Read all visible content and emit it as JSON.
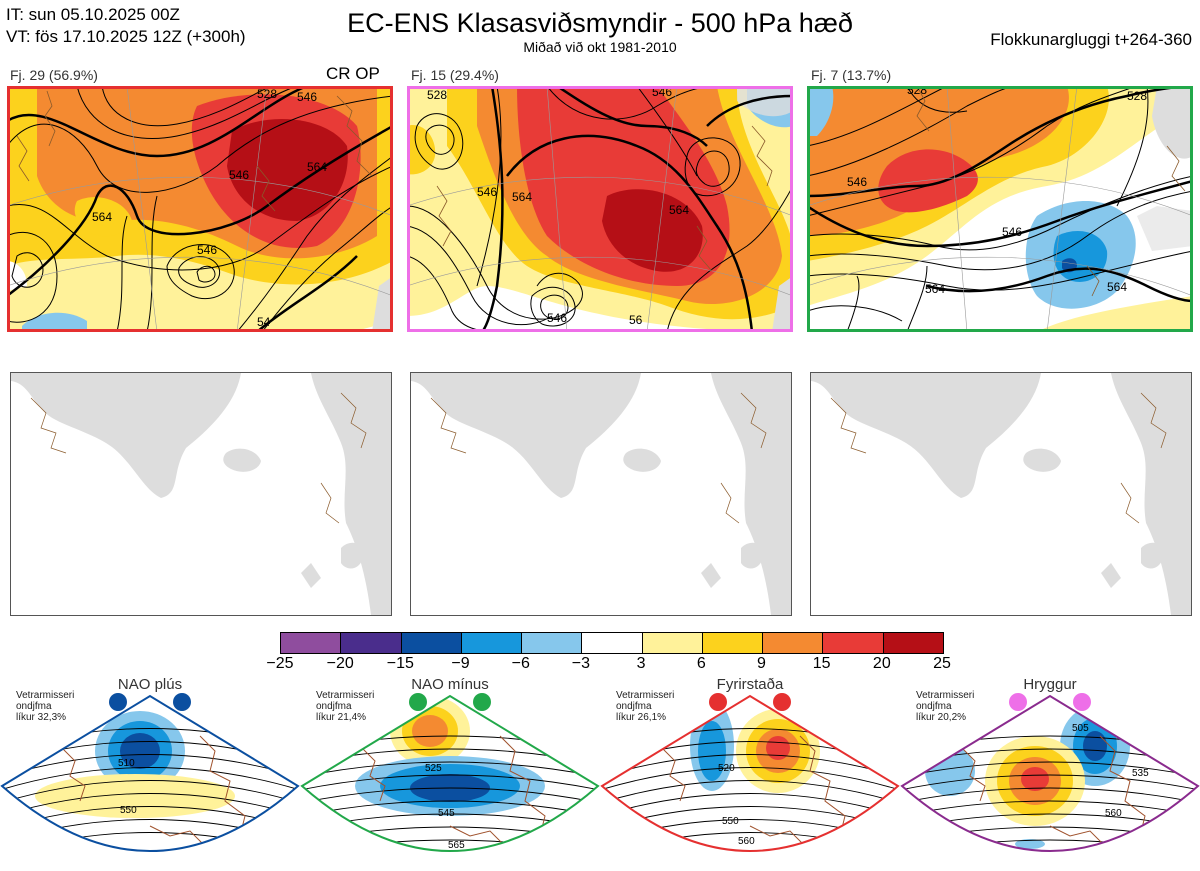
{
  "header": {
    "it_line": "IT: sun 05.10.2025 00Z",
    "vt_line": "VT: fös 17.10.2025 12Z  (+300h)",
    "title": "EC-ENS Klasasviðsmyndir - 500 hPa hæð",
    "subtitle": "Miðað við okt 1981-2010",
    "window": "Flokkunargluggi t+264-360"
  },
  "panels": [
    {
      "label": "Fj. 29 (56.9%)",
      "extra": "CR OP",
      "border_color": "#e53030",
      "contours": [
        "546",
        "564",
        "546",
        "528",
        "546",
        "564",
        "54"
      ]
    },
    {
      "label": "Fj. 15 (29.4%)",
      "extra": "",
      "border_color": "#ee6fe8",
      "contours": [
        "528",
        "546",
        "564",
        "546",
        "564",
        "546",
        "56"
      ]
    },
    {
      "label": "Fj. 7 (13.7%)",
      "extra": "",
      "border_color": "#22a84a",
      "contours": [
        "546",
        "546",
        "564",
        "564",
        "528",
        "528"
      ]
    }
  ],
  "colorbar": {
    "colors": [
      "#8f4d9e",
      "#4a2d8c",
      "#0b4fa0",
      "#1797dc",
      "#86c7ec",
      "#ffffff",
      "#fff29a",
      "#fcd21d",
      "#f48a31",
      "#e83b37",
      "#b50f16"
    ],
    "ticks": [
      "−25",
      "−20",
      "−15",
      "−9",
      "−6",
      "−3",
      "3",
      "6",
      "9",
      "15",
      "20",
      "25"
    ]
  },
  "regimes": [
    {
      "title": "NAO plús",
      "note1": "Vetrarmisseri",
      "note2": "ondjfma",
      "note3": "líkur 32,3%",
      "color": "#0b4fa0",
      "dot_color": "#0b4fa0",
      "contours": [
        "510",
        "550"
      ]
    },
    {
      "title": "NAO mínus",
      "note1": "Vetrarmisseri",
      "note2": "ondjfma",
      "note3": "líkur 21,4%",
      "color": "#22a84a",
      "dot_color": "#22a84a",
      "contours": [
        "525",
        "545",
        "565"
      ]
    },
    {
      "title": "Fyrirstaða",
      "note1": "Vetrarmisseri",
      "note2": "ondjfma",
      "note3": "líkur 26,1%",
      "color": "#e53030",
      "dot_color": "#e53030",
      "contours": [
        "520",
        "550",
        "560"
      ]
    },
    {
      "title": "Hryggur",
      "note1": "Vetrarmisseri",
      "note2": "ondjfma",
      "note3": "líkur 20,2%",
      "color": "#8a2b8e",
      "dot_color": "#ee6fe8",
      "contours": [
        "505",
        "535",
        "560"
      ]
    }
  ]
}
